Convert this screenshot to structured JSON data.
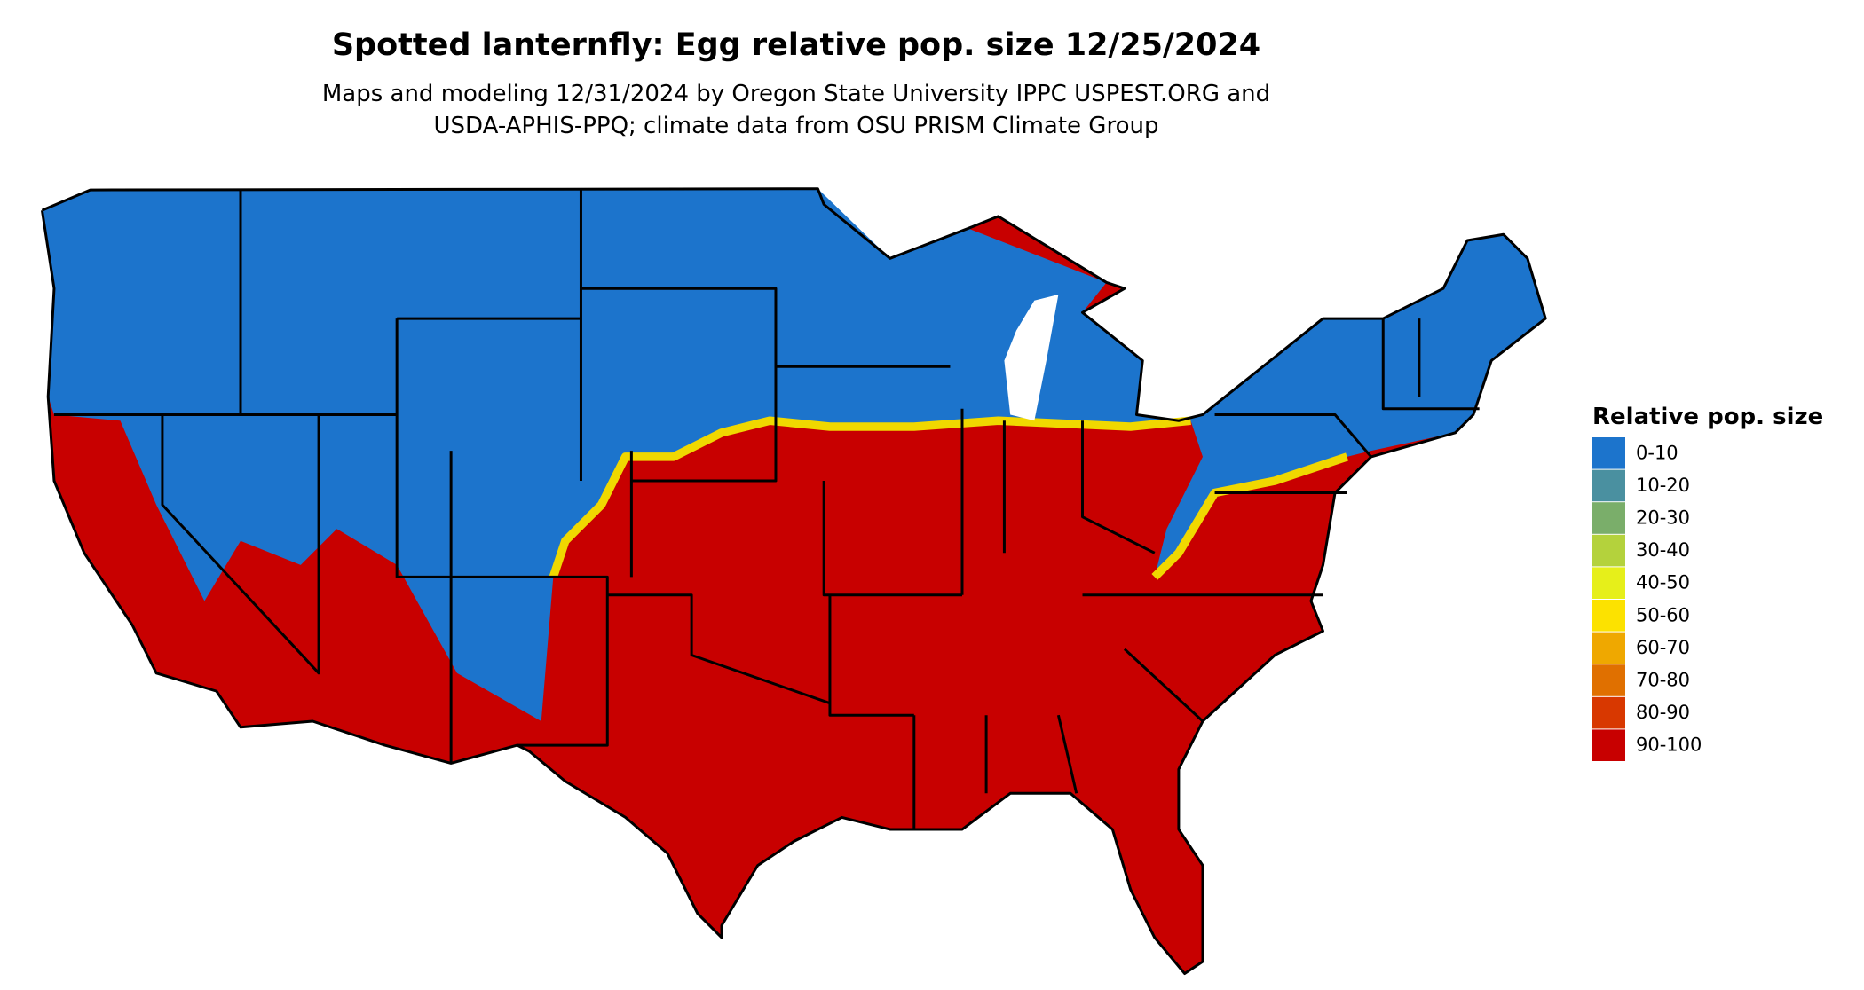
{
  "header": {
    "title": "Spotted lanternfly: Egg relative pop. size 12/25/2024",
    "subtitle_lines": [
      "Maps and modeling 12/31/2024 by Oregon State University IPPC USPEST.ORG and",
      "USDA-APHIS-PPQ; climate data from OSU PRISM Climate Group"
    ]
  },
  "legend": {
    "title": "Relative pop. size",
    "items": [
      {
        "label": "0-10",
        "color": "#1c74cc"
      },
      {
        "label": "10-20",
        "color": "#4a90a0"
      },
      {
        "label": "20-30",
        "color": "#7aae6a"
      },
      {
        "label": "30-40",
        "color": "#b4d23c"
      },
      {
        "label": "40-50",
        "color": "#e6ef1a"
      },
      {
        "label": "50-60",
        "color": "#fce200"
      },
      {
        "label": "60-70",
        "color": "#efa800"
      },
      {
        "label": "70-80",
        "color": "#e07000"
      },
      {
        "label": "80-90",
        "color": "#d83800"
      },
      {
        "label": "90-100",
        "color": "#c80000"
      }
    ]
  }
}
